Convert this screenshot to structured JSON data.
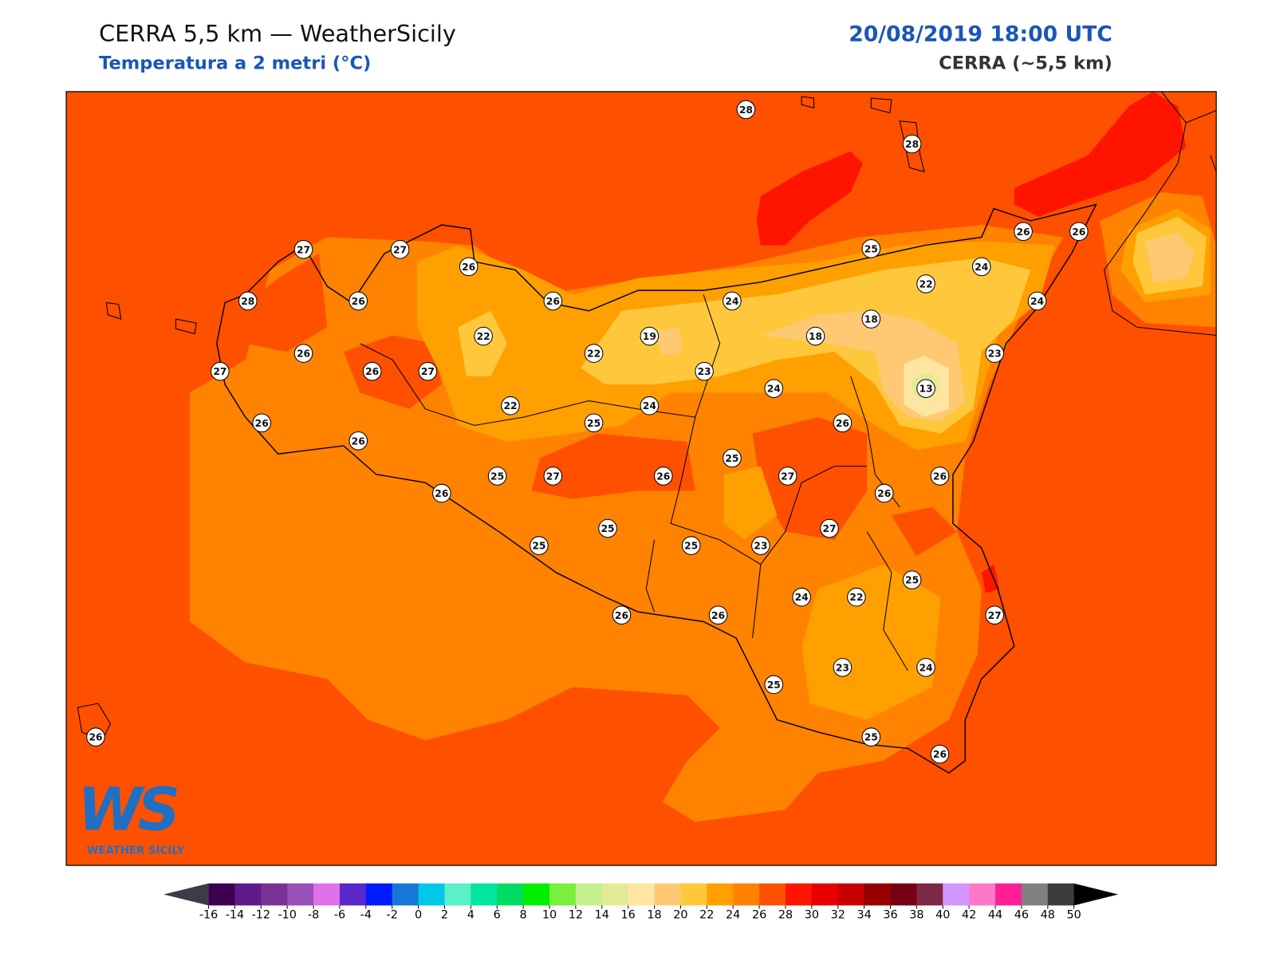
{
  "header": {
    "title": "CERRA 5,5 km — WeatherSicily",
    "subtitle": "Temperatura a 2 metri (°C)",
    "datetime": "20/08/2019 18:00 UTC",
    "model": "CERRA (~5,5 km)"
  },
  "map": {
    "background_color": "#ff5000",
    "coast_color": "#000000"
  },
  "stations": [
    28,
    28,
    27,
    27,
    26,
    28,
    26,
    26,
    24,
    25,
    26,
    26,
    24,
    22,
    24,
    18,
    19,
    18,
    22,
    26,
    27,
    26,
    27,
    22,
    23,
    23,
    13,
    24,
    24,
    22,
    25,
    26,
    26,
    26,
    25,
    26,
    25,
    27,
    26,
    27,
    26,
    26,
    27,
    25,
    25,
    25,
    23,
    25,
    24,
    22,
    27,
    26,
    26,
    23,
    24,
    25,
    25,
    26,
    26
  ],
  "colorbar": {
    "ticks": [
      -16,
      -14,
      -12,
      -10,
      -8,
      -6,
      -4,
      -2,
      0,
      2,
      4,
      6,
      8,
      10,
      12,
      14,
      16,
      18,
      20,
      22,
      24,
      26,
      28,
      30,
      32,
      34,
      36,
      38,
      40,
      42,
      44,
      46,
      48,
      50
    ],
    "colors": [
      "#3d0050",
      "#5e1a8b",
      "#7b3294",
      "#9b4fb8",
      "#e070e8",
      "#5a28c8",
      "#0019ff",
      "#1478d4",
      "#00c8e6",
      "#5af0c8",
      "#00e6a0",
      "#00dc64",
      "#00f000",
      "#78f03c",
      "#c3f08c",
      "#e1eb96",
      "#ffe6a0",
      "#ffc873",
      "#ffc83c",
      "#ffa000",
      "#ff8200",
      "#ff5000",
      "#ff1400",
      "#e60000",
      "#c80000",
      "#960000",
      "#780014",
      "#7d2846",
      "#d296ff",
      "#ff78c8",
      "#ff1e96",
      "#808080",
      "#3c3c3c"
    ],
    "under_color": "#3c3c46",
    "over_color": "#000000"
  },
  "logo": {
    "monogram": "WS",
    "name": "WEATHER SICILY"
  }
}
